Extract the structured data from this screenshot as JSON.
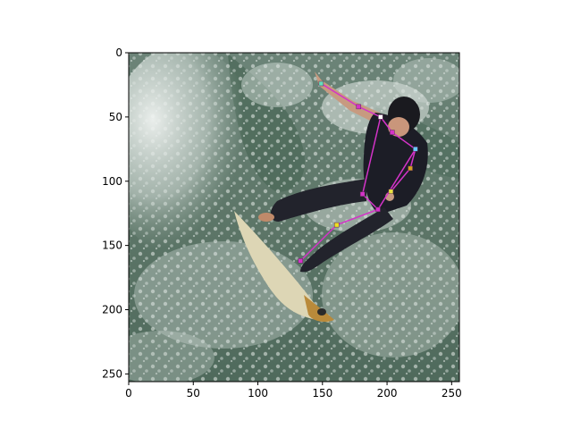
{
  "figure": {
    "image_extent": {
      "x": [
        0,
        256
      ],
      "y": [
        0,
        256
      ]
    },
    "x_ticks": [
      "0",
      "50",
      "100",
      "150",
      "200",
      "250"
    ],
    "y_ticks": [
      "0",
      "50",
      "100",
      "150",
      "200",
      "250"
    ]
  },
  "photo": {
    "subject": "surfer in black wetsuit carving on a white surfboard through breaking wave spray",
    "colors": {
      "water": "#5f7a6c",
      "foam": "#dfe6e2",
      "wetsuit": "#1c1d26",
      "board": "#ddd6b5",
      "board_tail": "#b98a3a"
    }
  },
  "pose_overlay": {
    "line_color": "#d433c8",
    "keypoints": [
      {
        "name": "right-hand",
        "x": 149,
        "y": 24,
        "color": "#66ddbb"
      },
      {
        "name": "right-elbow",
        "x": 178,
        "y": 42,
        "color": "#d433c8"
      },
      {
        "name": "right-shoulder",
        "x": 195,
        "y": 50,
        "color": "#ffffff"
      },
      {
        "name": "head",
        "x": 204,
        "y": 62,
        "color": "#d433c8"
      },
      {
        "name": "left-shoulder",
        "x": 222,
        "y": 75,
        "color": "#66ccff"
      },
      {
        "name": "left-elbow",
        "x": 218,
        "y": 90,
        "color": "#d4a020"
      },
      {
        "name": "left-hand",
        "x": 203,
        "y": 108,
        "color": "#e8e040"
      },
      {
        "name": "right-hip",
        "x": 181,
        "y": 110,
        "color": "#d433c8"
      },
      {
        "name": "left-hip",
        "x": 193,
        "y": 122,
        "color": "#d433c8"
      },
      {
        "name": "knee",
        "x": 161,
        "y": 134,
        "color": "#f0e020"
      },
      {
        "name": "ankle",
        "x": 133,
        "y": 162,
        "color": "#d433c8"
      }
    ],
    "edges": [
      [
        "right-hand",
        "right-elbow"
      ],
      [
        "right-elbow",
        "right-shoulder"
      ],
      [
        "right-shoulder",
        "head"
      ],
      [
        "head",
        "left-shoulder"
      ],
      [
        "left-shoulder",
        "left-elbow"
      ],
      [
        "left-elbow",
        "left-hand"
      ],
      [
        "right-shoulder",
        "right-hip"
      ],
      [
        "left-shoulder",
        "left-hip"
      ],
      [
        "right-hip",
        "left-hip"
      ],
      [
        "left-hip",
        "knee"
      ],
      [
        "knee",
        "ankle"
      ]
    ]
  }
}
